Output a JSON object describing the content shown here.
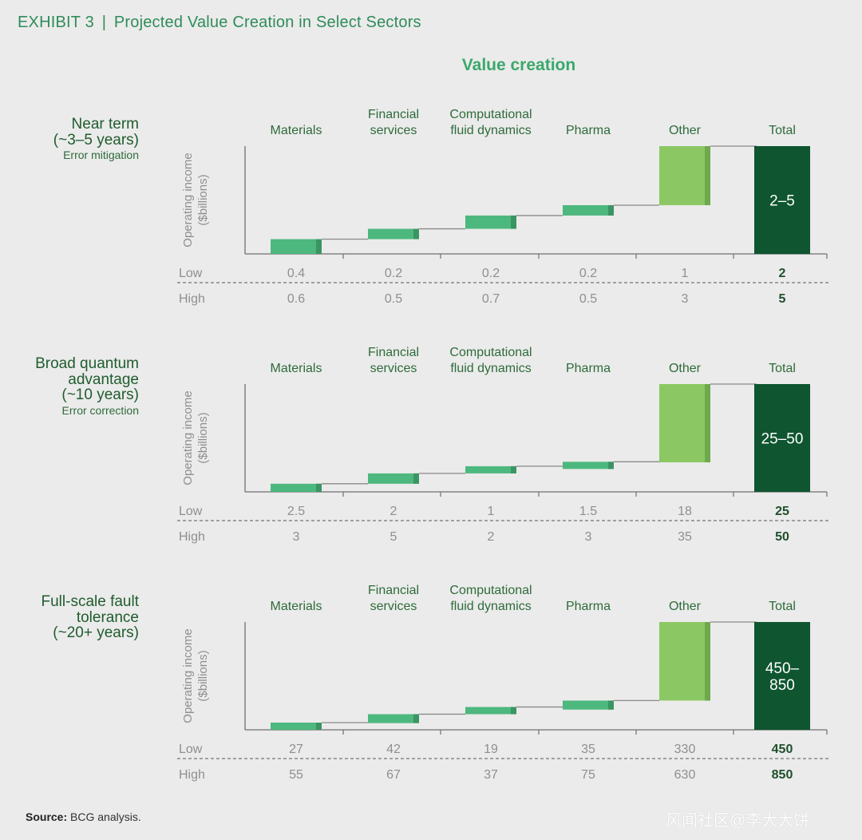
{
  "exhibit": {
    "label": "EXHIBIT 3",
    "separator": "|",
    "title": "Projected Value Creation in Select Sectors"
  },
  "section_title": "Value creation",
  "source": {
    "label": "Source:",
    "text": "BCG analysis."
  },
  "watermark": "风闻社区@李大大饼",
  "colors": {
    "sector_bar": "#4db87e",
    "sector_bar_side": "#3b9463",
    "other_bar": "#8bc863",
    "other_bar_side": "#6ea94d",
    "total_bar": "#0e5530",
    "axis": "#6f6f6f",
    "connector": "#8a8a8a"
  },
  "chart_data": [
    {
      "type": "bar",
      "subtype": "waterfall",
      "stage": "Near term",
      "stage_lines": [
        "Near term",
        "(~3–5 years)"
      ],
      "stage_note": "Error mitigation",
      "ylabel": [
        "Operating income",
        "($billions)"
      ],
      "categories": [
        "Materials",
        "Financial services",
        "Computational fluid dynamics",
        "Pharma",
        "Other",
        "Total"
      ],
      "category_lines": [
        [
          "Materials"
        ],
        [
          "Financial",
          "services"
        ],
        [
          "Computational",
          "fluid dynamics"
        ],
        [
          "Pharma"
        ],
        [
          "Other"
        ],
        [
          "Total"
        ]
      ],
      "series": [
        {
          "name": "Low",
          "values": [
            "0.4",
            "0.2",
            "0.2",
            "0.2",
            "1",
            "2"
          ]
        },
        {
          "name": "High",
          "values": [
            "0.6",
            "0.5",
            "0.7",
            "0.5",
            "3",
            "5"
          ]
        }
      ],
      "total_label": "2–5"
    },
    {
      "type": "bar",
      "subtype": "waterfall",
      "stage": "Broad quantum advantage",
      "stage_lines": [
        "Broad quantum",
        "advantage",
        "(~10 years)"
      ],
      "stage_note": "Error correction",
      "ylabel": [
        "Operating income",
        "($billions)"
      ],
      "categories": [
        "Materials",
        "Financial services",
        "Computational fluid dynamics",
        "Pharma",
        "Other",
        "Total"
      ],
      "category_lines": [
        [
          "Materials"
        ],
        [
          "Financial",
          "services"
        ],
        [
          "Computational",
          "fluid dynamics"
        ],
        [
          "Pharma"
        ],
        [
          "Other"
        ],
        [
          "Total"
        ]
      ],
      "series": [
        {
          "name": "Low",
          "values": [
            "2.5",
            "2",
            "1",
            "1.5",
            "18",
            "25"
          ]
        },
        {
          "name": "High",
          "values": [
            "3",
            "5",
            "2",
            "3",
            "35",
            "50"
          ]
        }
      ],
      "total_label": "25–50"
    },
    {
      "type": "bar",
      "subtype": "waterfall",
      "stage": "Full-scale fault tolerance",
      "stage_lines": [
        "Full-scale fault",
        "tolerance",
        "(~20+ years)"
      ],
      "stage_note": "",
      "ylabel": [
        "Operating income",
        "($billions)"
      ],
      "categories": [
        "Materials",
        "Financial services",
        "Computational fluid dynamics",
        "Pharma",
        "Other",
        "Total"
      ],
      "category_lines": [
        [
          "Materials"
        ],
        [
          "Financial",
          "services"
        ],
        [
          "Computational",
          "fluid dynamics"
        ],
        [
          "Pharma"
        ],
        [
          "Other"
        ],
        [
          "Total"
        ]
      ],
      "series": [
        {
          "name": "Low",
          "values": [
            "27",
            "42",
            "19",
            "35",
            "330",
            "450"
          ]
        },
        {
          "name": "High",
          "values": [
            "55",
            "67",
            "37",
            "75",
            "630",
            "850"
          ]
        }
      ],
      "total_label": [
        "450–",
        "850"
      ]
    }
  ]
}
